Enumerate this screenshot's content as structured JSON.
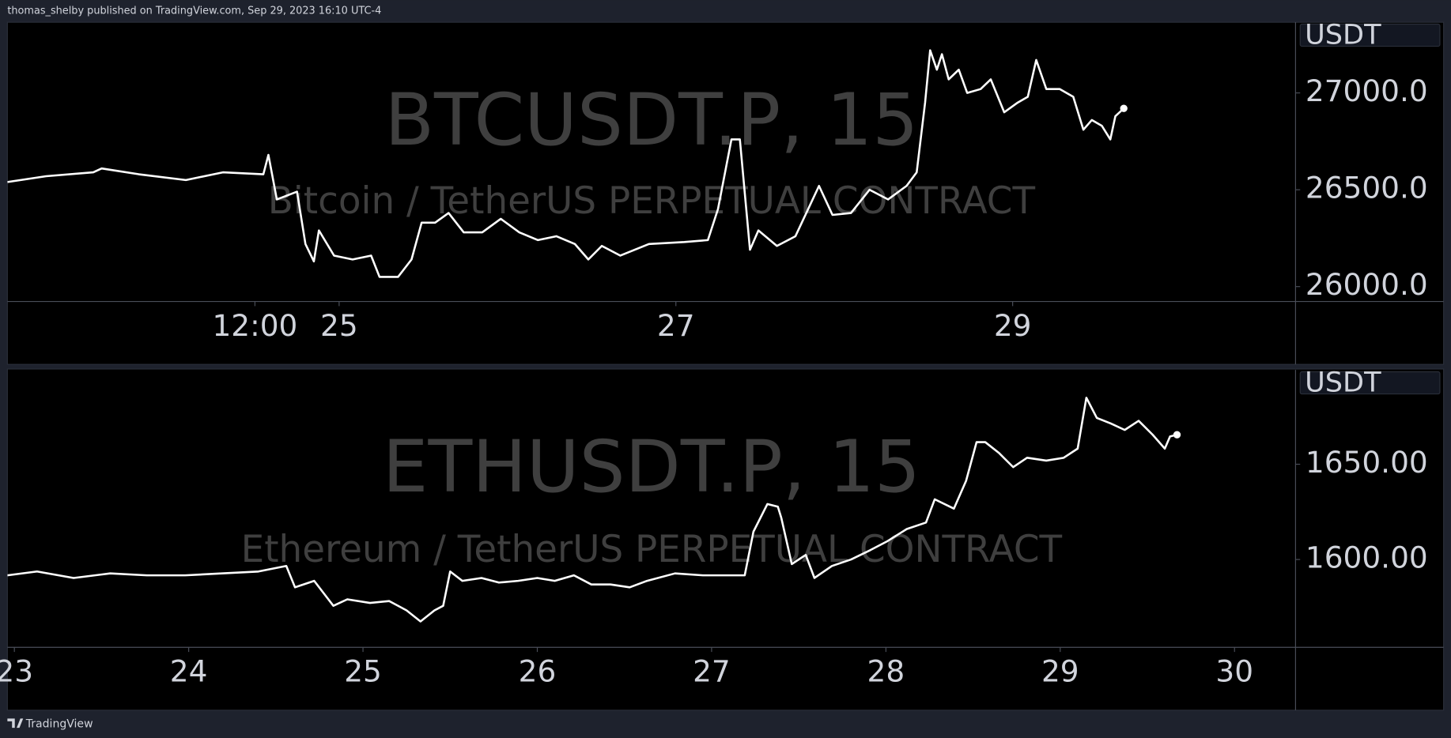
{
  "header": "thomas_shelby published on TradingView.com, Sep 29, 2023 16:10 UTC-4",
  "footer": "TradingView",
  "chart_data": [
    {
      "type": "line",
      "watermark": "BTCUSDT.P, 15",
      "watermark_subtitle": "Bitcoin / TetherUS PERPETUAL CONTRACT",
      "currency": "USDT",
      "color": "#ffffff",
      "xlim": [
        23.03,
        30.68
      ],
      "ylim": [
        25923,
        27365
      ],
      "xticks": [
        {
          "value": 24.5,
          "label": "12:00"
        },
        25,
        27,
        29
      ],
      "yticks": [
        {
          "value": 26000,
          "label": "26000.0"
        },
        {
          "value": 26500,
          "label": "26500.0"
        },
        {
          "value": 27000,
          "label": "27000.0"
        }
      ],
      "x": [
        23.03,
        23.26,
        23.54,
        23.59,
        23.81,
        24.09,
        24.31,
        24.55,
        24.58,
        24.63,
        24.75,
        24.8,
        24.85,
        24.88,
        24.97,
        25.08,
        25.19,
        25.24,
        25.35,
        25.43,
        25.49,
        25.57,
        25.65,
        25.74,
        25.85,
        25.96,
        26.07,
        26.18,
        26.29,
        26.4,
        26.48,
        26.56,
        26.67,
        26.84,
        27.05,
        27.19,
        27.25,
        27.33,
        27.38,
        27.44,
        27.49,
        27.6,
        27.71,
        27.85,
        27.93,
        28.04,
        28.15,
        28.26,
        28.37,
        28.43,
        28.48,
        28.51,
        28.55,
        28.58,
        28.62,
        28.68,
        28.73,
        28.81,
        28.87,
        28.95,
        29.03,
        29.09,
        29.14,
        29.2,
        29.28,
        29.36,
        29.42,
        29.47,
        29.53,
        29.58,
        29.61,
        29.66
      ],
      "values": [
        26540,
        26570,
        26590,
        26610,
        26580,
        26550,
        26590,
        26580,
        26680,
        26450,
        26490,
        26220,
        26130,
        26290,
        26160,
        26140,
        26160,
        26050,
        26050,
        26140,
        26330,
        26330,
        26380,
        26280,
        26280,
        26350,
        26280,
        26240,
        26260,
        26220,
        26140,
        26210,
        26160,
        26220,
        26230,
        26240,
        26400,
        26760,
        26760,
        26190,
        26290,
        26210,
        26260,
        26520,
        26370,
        26380,
        26500,
        26450,
        26520,
        26590,
        26950,
        27220,
        27120,
        27200,
        27070,
        27120,
        27000,
        27020,
        27070,
        26900,
        26950,
        26980,
        27170,
        27020,
        27020,
        26980,
        26810,
        26860,
        26830,
        26760,
        26880,
        26920
      ]
    },
    {
      "type": "line",
      "watermark": "ETHUSDT.P, 15",
      "watermark_subtitle": "Ethereum / TetherUS PERPETUAL CONTRACT",
      "currency": "USDT",
      "color": "#ffffff",
      "xlim": [
        22.96,
        30.35
      ],
      "ylim": [
        1553.9,
        1699.5
      ],
      "xticks": [
        23,
        24,
        25,
        26,
        27,
        28,
        29,
        30
      ],
      "yticks": [
        {
          "value": 1600,
          "label": "1600.00"
        },
        {
          "value": 1650,
          "label": "1650.00"
        }
      ],
      "x": [
        22.96,
        23.13,
        23.34,
        23.55,
        23.76,
        23.98,
        24.19,
        24.4,
        24.56,
        24.61,
        24.72,
        24.83,
        24.91,
        25.04,
        25.15,
        25.25,
        25.33,
        25.41,
        25.46,
        25.5,
        25.57,
        25.68,
        25.78,
        25.89,
        26.0,
        26.1,
        26.21,
        26.31,
        26.42,
        26.53,
        26.63,
        26.79,
        26.95,
        27.11,
        27.19,
        27.24,
        27.32,
        27.38,
        27.4,
        27.46,
        27.54,
        27.59,
        27.69,
        27.8,
        27.91,
        28.01,
        28.12,
        28.23,
        28.28,
        28.39,
        28.46,
        28.52,
        28.57,
        28.65,
        28.73,
        28.81,
        28.92,
        29.02,
        29.1,
        29.15,
        29.21,
        29.29,
        29.37,
        29.45,
        29.53,
        29.6,
        29.63,
        29.67
      ],
      "values": [
        1591.7,
        1593.7,
        1590.3,
        1592.7,
        1591.7,
        1591.7,
        1592.7,
        1593.7,
        1596.6,
        1585.4,
        1588.8,
        1575.7,
        1579.1,
        1577.2,
        1578.2,
        1573.3,
        1567.5,
        1573.3,
        1575.7,
        1593.7,
        1588.8,
        1590.3,
        1587.9,
        1588.8,
        1590.3,
        1588.8,
        1591.7,
        1586.9,
        1586.9,
        1585.4,
        1588.8,
        1592.7,
        1591.7,
        1591.7,
        1591.7,
        1614.6,
        1629.1,
        1627.7,
        1621.8,
        1597.6,
        1602.4,
        1590.3,
        1596.6,
        1600.0,
        1604.9,
        1609.7,
        1616.0,
        1619.4,
        1631.6,
        1626.7,
        1641.3,
        1661.6,
        1661.6,
        1655.8,
        1648.5,
        1653.4,
        1651.9,
        1653.4,
        1658.2,
        1684.9,
        1674.3,
        1671.4,
        1668.0,
        1672.8,
        1665.5,
        1658.2,
        1664.6,
        1665.5
      ]
    }
  ]
}
